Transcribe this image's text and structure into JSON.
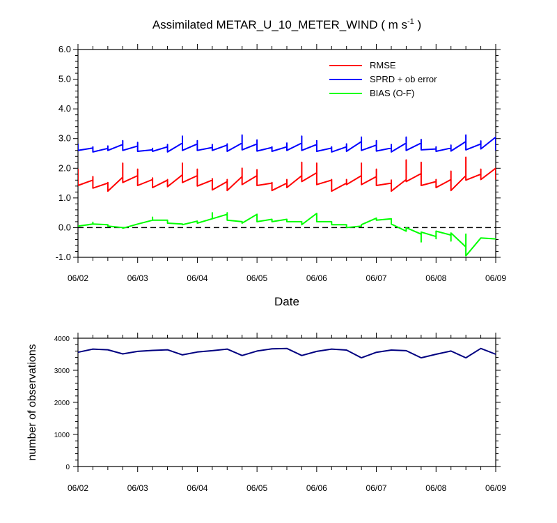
{
  "chart_data": [
    {
      "type": "line",
      "title": "Assimilated METAR_U_10_METER_WIND ( m s",
      "title_sup": "-1",
      "title_close": " )",
      "xlabel": "Date",
      "ylabel": "",
      "xlim": [
        0,
        28
      ],
      "ylim": [
        -1.0,
        6.0
      ],
      "x_ticks": [
        0,
        4,
        8,
        12,
        16,
        20,
        24,
        28
      ],
      "x_tick_labels": [
        "06/02",
        "06/03",
        "06/04",
        "06/05",
        "06/06",
        "06/07",
        "06/08",
        "06/09"
      ],
      "y_ticks": [
        -1.0,
        0.0,
        1.0,
        2.0,
        3.0,
        4.0,
        5.0,
        6.0
      ],
      "y_tick_labels": [
        "-1.0",
        "0.0",
        "1.0",
        "2.0",
        "3.0",
        "4.0",
        "5.0",
        "6.0"
      ],
      "x_unit_note": "x in 6-hourly analysis steps from 06/02 00Z",
      "legend_position": "top-right",
      "reference_line": {
        "y": 0.0,
        "style": "dashed",
        "color": "#000000"
      },
      "series": [
        {
          "name": "RMSE",
          "color": "#ff0000",
          "points": [
            [
              0,
              1.98
            ],
            [
              0,
              1.42
            ],
            [
              1,
              1.6
            ],
            [
              1,
              1.62
            ],
            [
              1,
              1.72
            ],
            [
              1,
              1.33
            ],
            [
              2,
              1.5
            ],
            [
              2,
              1.52
            ],
            [
              2,
              1.23
            ],
            [
              3,
              1.7
            ],
            [
              3,
              1.9
            ],
            [
              3,
              2.17
            ],
            [
              3,
              1.52
            ],
            [
              4,
              1.75
            ],
            [
              4,
              1.97
            ],
            [
              4,
              1.42
            ],
            [
              5,
              1.62
            ],
            [
              5,
              1.67
            ],
            [
              5,
              1.35
            ],
            [
              6,
              1.6
            ],
            [
              6,
              1.62
            ],
            [
              6,
              1.38
            ],
            [
              7,
              1.78
            ],
            [
              7,
              2.17
            ],
            [
              7,
              1.52
            ],
            [
              8,
              1.75
            ],
            [
              8,
              1.97
            ],
            [
              8,
              1.4
            ],
            [
              9,
              1.6
            ],
            [
              9,
              1.65
            ],
            [
              9,
              1.27
            ],
            [
              10,
              1.55
            ],
            [
              10,
              1.62
            ],
            [
              10,
              1.25
            ],
            [
              11,
              1.72
            ],
            [
              11,
              2.0
            ],
            [
              11,
              1.45
            ],
            [
              12,
              1.75
            ],
            [
              12,
              1.95
            ],
            [
              12,
              1.42
            ],
            [
              13,
              1.5
            ],
            [
              13,
              1.52
            ],
            [
              13,
              1.25
            ],
            [
              14,
              1.5
            ],
            [
              14,
              1.62
            ],
            [
              14,
              1.35
            ],
            [
              15,
              1.75
            ],
            [
              15,
              2.2
            ],
            [
              15,
              1.55
            ],
            [
              16,
              1.85
            ],
            [
              16,
              2.17
            ],
            [
              16,
              1.45
            ],
            [
              17,
              1.6
            ],
            [
              17,
              1.62
            ],
            [
              17,
              1.23
            ],
            [
              18,
              1.5
            ],
            [
              18,
              1.62
            ],
            [
              18,
              1.45
            ],
            [
              19,
              1.75
            ],
            [
              19,
              2.17
            ],
            [
              19,
              1.45
            ],
            [
              20,
              1.72
            ],
            [
              20,
              1.97
            ],
            [
              20,
              1.42
            ],
            [
              21,
              1.5
            ],
            [
              21,
              1.6
            ],
            [
              21,
              1.23
            ],
            [
              22,
              1.62
            ],
            [
              22,
              1.85
            ],
            [
              22,
              2.28
            ],
            [
              22,
              1.55
            ],
            [
              23,
              1.82
            ],
            [
              23,
              2.2
            ],
            [
              23,
              1.42
            ],
            [
              24,
              1.55
            ],
            [
              24,
              1.62
            ],
            [
              24,
              1.35
            ],
            [
              25,
              1.62
            ],
            [
              25,
              1.9
            ],
            [
              25,
              1.25
            ],
            [
              26,
              1.75
            ],
            [
              26,
              2.37
            ],
            [
              26,
              1.6
            ],
            [
              27,
              1.8
            ],
            [
              27,
              1.97
            ],
            [
              27,
              1.62
            ],
            [
              28,
              2.0
            ],
            [
              28,
              1.62
            ]
          ]
        },
        {
          "name": "SPRD + ob error",
          "color": "#0000ff",
          "points": [
            [
              0,
              2.83
            ],
            [
              0,
              2.6
            ],
            [
              1,
              2.68
            ],
            [
              1,
              2.72
            ],
            [
              1,
              2.55
            ],
            [
              2,
              2.67
            ],
            [
              2,
              2.75
            ],
            [
              2,
              2.6
            ],
            [
              3,
              2.8
            ],
            [
              3,
              2.93
            ],
            [
              3,
              2.6
            ],
            [
              4,
              2.75
            ],
            [
              4,
              2.87
            ],
            [
              4,
              2.57
            ],
            [
              5,
              2.62
            ],
            [
              5,
              2.67
            ],
            [
              5,
              2.57
            ],
            [
              6,
              2.72
            ],
            [
              6,
              2.8
            ],
            [
              6,
              2.55
            ],
            [
              7,
              2.85
            ],
            [
              7,
              3.08
            ],
            [
              7,
              2.6
            ],
            [
              8,
              2.82
            ],
            [
              8,
              2.93
            ],
            [
              8,
              2.6
            ],
            [
              9,
              2.7
            ],
            [
              9,
              2.8
            ],
            [
              9,
              2.6
            ],
            [
              10,
              2.78
            ],
            [
              10,
              2.82
            ],
            [
              10,
              2.57
            ],
            [
              11,
              2.85
            ],
            [
              11,
              3.12
            ],
            [
              11,
              2.62
            ],
            [
              12,
              2.82
            ],
            [
              12,
              2.95
            ],
            [
              12,
              2.58
            ],
            [
              13,
              2.7
            ],
            [
              13,
              2.72
            ],
            [
              13,
              2.57
            ],
            [
              14,
              2.72
            ],
            [
              14,
              2.85
            ],
            [
              14,
              2.6
            ],
            [
              15,
              2.85
            ],
            [
              15,
              3.08
            ],
            [
              15,
              2.6
            ],
            [
              16,
              2.8
            ],
            [
              16,
              2.93
            ],
            [
              16,
              2.57
            ],
            [
              17,
              2.68
            ],
            [
              17,
              2.72
            ],
            [
              17,
              2.55
            ],
            [
              18,
              2.72
            ],
            [
              18,
              2.82
            ],
            [
              18,
              2.57
            ],
            [
              19,
              2.9
            ],
            [
              19,
              3.05
            ],
            [
              19,
              2.6
            ],
            [
              20,
              2.78
            ],
            [
              20,
              2.93
            ],
            [
              20,
              2.58
            ],
            [
              21,
              2.68
            ],
            [
              21,
              2.8
            ],
            [
              21,
              2.55
            ],
            [
              22,
              2.85
            ],
            [
              22,
              3.05
            ],
            [
              22,
              2.6
            ],
            [
              23,
              2.85
            ],
            [
              23,
              2.97
            ],
            [
              23,
              2.62
            ],
            [
              24,
              2.65
            ],
            [
              24,
              2.72
            ],
            [
              24,
              2.57
            ],
            [
              25,
              2.68
            ],
            [
              25,
              2.78
            ],
            [
              25,
              2.58
            ],
            [
              26,
              2.9
            ],
            [
              26,
              3.12
            ],
            [
              26,
              2.62
            ],
            [
              27,
              2.82
            ],
            [
              27,
              2.92
            ],
            [
              27,
              2.65
            ],
            [
              28,
              3.05
            ],
            [
              28,
              2.6
            ]
          ]
        },
        {
          "name": "BIAS (O-F)",
          "color": "#00ff00",
          "points": [
            [
              0,
              0.05
            ],
            [
              1,
              0.12
            ],
            [
              1,
              0.18
            ],
            [
              1,
              0.12
            ],
            [
              2,
              0.1
            ],
            [
              2,
              0.05
            ],
            [
              3,
              0.0
            ],
            [
              3,
              -0.02
            ],
            [
              4,
              0.12
            ],
            [
              5,
              0.25
            ],
            [
              5,
              0.35
            ],
            [
              5,
              0.25
            ],
            [
              6,
              0.25
            ],
            [
              6,
              0.15
            ],
            [
              7,
              0.12
            ],
            [
              7,
              0.1
            ],
            [
              8,
              0.22
            ],
            [
              8,
              0.15
            ],
            [
              9,
              0.3
            ],
            [
              9,
              0.5
            ],
            [
              9,
              0.3
            ],
            [
              10,
              0.45
            ],
            [
              10,
              0.5
            ],
            [
              10,
              0.25
            ],
            [
              11,
              0.2
            ],
            [
              11,
              0.15
            ],
            [
              12,
              0.45
            ],
            [
              12,
              0.2
            ],
            [
              13,
              0.28
            ],
            [
              13,
              0.2
            ],
            [
              14,
              0.28
            ],
            [
              14,
              0.2
            ],
            [
              15,
              0.2
            ],
            [
              15,
              0.1
            ],
            [
              16,
              0.48
            ],
            [
              16,
              0.2
            ],
            [
              17,
              0.2
            ],
            [
              17,
              0.1
            ],
            [
              18,
              0.1
            ],
            [
              18,
              0.0
            ],
            [
              19,
              0.05
            ],
            [
              19,
              0.1
            ],
            [
              20,
              0.32
            ],
            [
              20,
              0.25
            ],
            [
              21,
              0.3
            ],
            [
              21,
              0.12
            ],
            [
              22,
              -0.12
            ],
            [
              22,
              0.0
            ],
            [
              23,
              -0.22
            ],
            [
              23,
              -0.48
            ],
            [
              23,
              -0.15
            ],
            [
              24,
              -0.3
            ],
            [
              24,
              -0.37
            ],
            [
              24,
              -0.12
            ],
            [
              25,
              -0.25
            ],
            [
              25,
              -0.45
            ],
            [
              25,
              -0.18
            ],
            [
              26,
              -0.65
            ],
            [
              26,
              -0.22
            ],
            [
              26,
              -0.95
            ],
            [
              27,
              -0.35
            ],
            [
              28,
              -0.38
            ]
          ]
        }
      ]
    },
    {
      "type": "line",
      "title": "",
      "xlabel": "",
      "ylabel": "number of observations",
      "xlim": [
        0,
        28
      ],
      "ylim": [
        0,
        4000
      ],
      "x_ticks": [
        0,
        4,
        8,
        12,
        16,
        20,
        24,
        28
      ],
      "x_tick_labels": [
        "06/02",
        "06/03",
        "06/04",
        "06/05",
        "06/06",
        "06/07",
        "06/08",
        "06/09"
      ],
      "y_ticks": [
        0,
        1000,
        2000,
        3000,
        4000
      ],
      "y_tick_labels": [
        "0",
        "1000",
        "2000",
        "3000",
        "4000"
      ],
      "series": [
        {
          "color": "#000080",
          "x": [
            0,
            1,
            2,
            3,
            4,
            5,
            6,
            7,
            8,
            9,
            10,
            11,
            12,
            13,
            14,
            15,
            16,
            17,
            18,
            19,
            20,
            21,
            22,
            23,
            24,
            25,
            26,
            27,
            28
          ],
          "values": [
            3560,
            3660,
            3640,
            3510,
            3590,
            3620,
            3640,
            3480,
            3570,
            3610,
            3660,
            3460,
            3600,
            3670,
            3680,
            3460,
            3590,
            3660,
            3630,
            3390,
            3560,
            3630,
            3610,
            3390,
            3500,
            3600,
            3390,
            3680,
            3500
          ]
        }
      ]
    }
  ]
}
